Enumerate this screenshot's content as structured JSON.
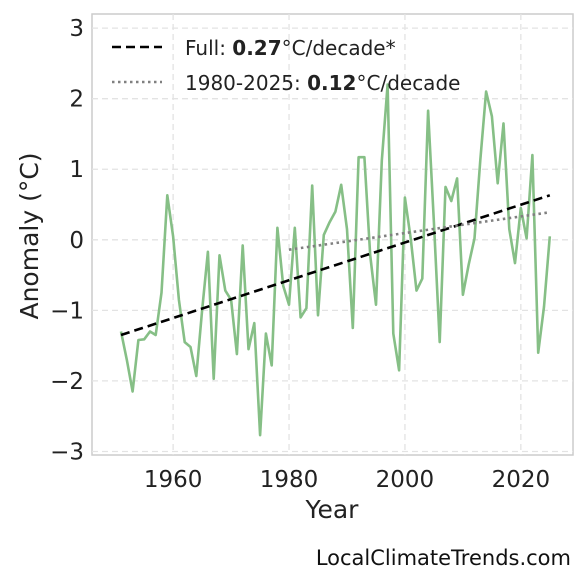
{
  "chart_data": {
    "type": "line",
    "xlabel": "Year",
    "ylabel": "Anomaly (°C)",
    "xlim": [
      1946,
      2029
    ],
    "ylim": [
      -3.05,
      3.2
    ],
    "x_ticks": [
      1960,
      1980,
      2000,
      2020
    ],
    "y_ticks": [
      -3,
      -2,
      -1,
      0,
      1,
      2,
      3
    ],
    "y_tick_labels": [
      "−3",
      "−2",
      "−1",
      "0",
      "1",
      "2",
      "3"
    ],
    "grid": true,
    "legend_position": "top-left",
    "series": [
      {
        "style": "solid",
        "color": "#86bf86",
        "x": [
          1951,
          1952,
          1953,
          1954,
          1955,
          1956,
          1957,
          1958,
          1959,
          1960,
          1961,
          1962,
          1963,
          1964,
          1965,
          1966,
          1967,
          1968,
          1969,
          1970,
          1971,
          1972,
          1973,
          1974,
          1975,
          1976,
          1977,
          1978,
          1979,
          1980,
          1981,
          1982,
          1983,
          1984,
          1985,
          1986,
          1987,
          1988,
          1989,
          1990,
          1991,
          1992,
          1993,
          1994,
          1995,
          1996,
          1997,
          1998,
          1999,
          2000,
          2001,
          2002,
          2003,
          2004,
          2005,
          2006,
          2007,
          2008,
          2009,
          2010,
          2011,
          2012,
          2013,
          2014,
          2015,
          2016,
          2017,
          2018,
          2019,
          2020,
          2021,
          2022,
          2023,
          2024,
          2025
        ],
        "y": [
          -1.3,
          -1.7,
          -2.15,
          -1.42,
          -1.41,
          -1.3,
          -1.35,
          -0.75,
          0.63,
          0.05,
          -0.85,
          -1.45,
          -1.52,
          -1.93,
          -1.0,
          -0.17,
          -1.97,
          -0.22,
          -0.72,
          -0.85,
          -1.62,
          -0.08,
          -1.55,
          -1.18,
          -2.77,
          -1.33,
          -1.78,
          0.17,
          -0.65,
          -0.92,
          0.17,
          -1.1,
          -0.97,
          0.77,
          -1.07,
          0.07,
          0.25,
          0.4,
          0.78,
          0.15,
          -1.25,
          1.17,
          1.17,
          -0.22,
          -0.92,
          1.12,
          2.2,
          -1.33,
          -1.85,
          0.6,
          0.02,
          -0.72,
          -0.55,
          1.83,
          0.25,
          -1.45,
          0.75,
          0.55,
          0.87,
          -0.78,
          -0.35,
          0.02,
          1.13,
          2.1,
          1.75,
          0.8,
          1.65,
          0.15,
          -0.33,
          0.45,
          0.02,
          1.2,
          -1.6,
          -0.95,
          0.05
        ]
      },
      {
        "name": "Full:",
        "bold": "0.27",
        "suffix": "°C/decade*",
        "style": "dashed",
        "color": "#000000",
        "x": [
          1951,
          2025
        ],
        "y": [
          -1.35,
          0.63
        ]
      },
      {
        "name": "1980-2025:",
        "bold": "0.12",
        "suffix": "°C/decade",
        "style": "dotted",
        "color": "#808080",
        "x": [
          1980,
          2025
        ],
        "y": [
          -0.14,
          0.39
        ]
      }
    ]
  },
  "credit": "LocalClimateTrends.com"
}
